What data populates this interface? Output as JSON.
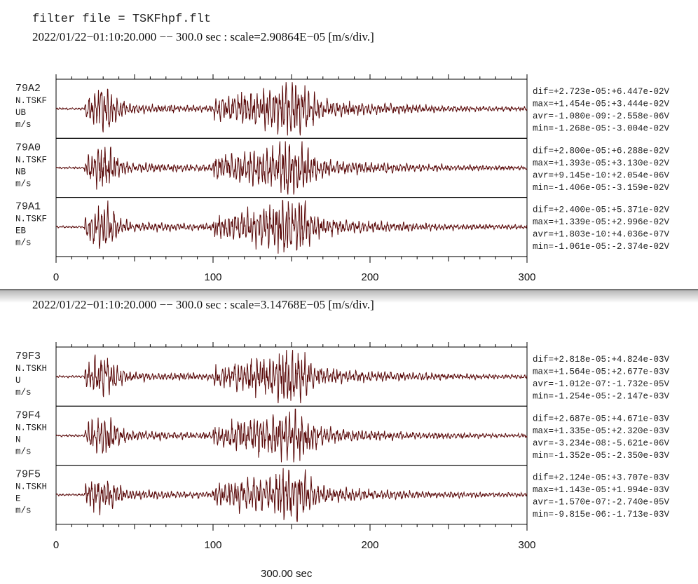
{
  "header": {
    "filter": "filter file = TSKFhpf.flt"
  },
  "panels": [
    {
      "caption": "2022/01/22−01:10:20.000 −− 300.0 sec : scale=2.90864E−05 [m/s/div.]",
      "xlim": [
        0,
        300
      ],
      "xticks": [
        0,
        100,
        200,
        300
      ],
      "traces": [
        {
          "code": "79A2",
          "station": "N.TSKF",
          "component": "UB",
          "unit": "m/s",
          "stats": [
            "dif=+2.723e-05:+6.447e-02V",
            "max=+1.454e-05:+3.444e-02V",
            "avr=-1.080e-09:-2.558e-06V",
            "min=-1.268e-05:-3.004e-02V"
          ]
        },
        {
          "code": "79A0",
          "station": "N.TSKF",
          "component": "NB",
          "unit": "m/s",
          "stats": [
            "dif=+2.800e-05:+6.288e-02V",
            "max=+1.393e-05:+3.130e-02V",
            "avr=+9.145e-10:+2.054e-06V",
            "min=-1.406e-05:-3.159e-02V"
          ]
        },
        {
          "code": "79A1",
          "station": "N.TSKF",
          "component": "EB",
          "unit": "m/s",
          "stats": [
            "dif=+2.400e-05:+5.371e-02V",
            "max=+1.339e-05:+2.996e-02V",
            "avr=+1.803e-10:+4.036e-07V",
            "min=-1.061e-05:-2.374e-02V"
          ]
        }
      ]
    },
    {
      "caption": "2022/01/22−01:10:20.000 −− 300.0 sec : scale=3.14768E−05 [m/s/div.]",
      "xlim": [
        0,
        300
      ],
      "xticks": [
        0,
        100,
        200,
        300
      ],
      "traces": [
        {
          "code": "79F3",
          "station": "N.TSKH",
          "component": "U",
          "unit": "m/s",
          "stats": [
            "dif=+2.818e-05:+4.824e-03V",
            "max=+1.564e-05:+2.677e-03V",
            "avr=-1.012e-07:-1.732e-05V",
            "min=-1.254e-05:-2.147e-03V"
          ]
        },
        {
          "code": "79F4",
          "station": "N.TSKH",
          "component": "N",
          "unit": "m/s",
          "stats": [
            "dif=+2.687e-05:+4.671e-03V",
            "max=+1.335e-05:+2.320e-03V",
            "avr=-3.234e-08:-5.621e-06V",
            "min=-1.352e-05:-2.350e-03V"
          ]
        },
        {
          "code": "79F5",
          "station": "N.TSKH",
          "component": "E",
          "unit": "m/s",
          "stats": [
            "dif=+2.124e-05:+3.707e-03V",
            "max=+1.143e-05:+1.994e-03V",
            "avr=-1.570e-07:-2.740e-05V",
            "min=-9.815e-06:-1.713e-03V"
          ]
        }
      ]
    }
  ],
  "footer": "300.00 sec"
}
